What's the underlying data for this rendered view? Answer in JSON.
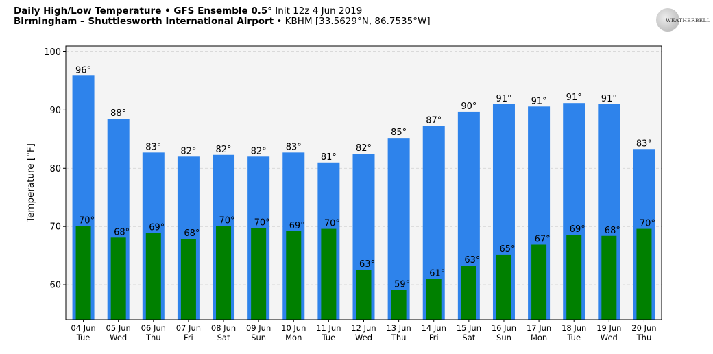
{
  "header": {
    "line1_bold": "Daily High/Low Temperature • GFS Ensemble 0.5",
    "line1_deg": "°",
    "line1_rest": " Init 12z 4 Jun 2019",
    "line2_bold": "Birmingham – Shuttlesworth International Airport",
    "line2_rest": " • KBHM [33.5629°N, 86.7535°W]"
  },
  "logo": {
    "icon": "weatherbell-logo",
    "text": "WEATHERBELL"
  },
  "colors": {
    "high": "#2e83eb",
    "low": "#008000",
    "plot_bg": "#f4f4f4",
    "grid": "#cfcfcf"
  },
  "chart_data": {
    "type": "bar",
    "title": "Daily High/Low Temperature • GFS Ensemble 0.5° Init 12z 4 Jun 2019",
    "subtitle": "Birmingham – Shuttlesworth International Airport • KBHM [33.5629°N, 86.7535°W]",
    "ylabel": "Temperature [°F]",
    "xlabel": "",
    "ylim": [
      54,
      101
    ],
    "yticks": [
      60,
      70,
      80,
      90,
      100
    ],
    "grid": true,
    "categories": [
      [
        "04 Jun",
        "Tue"
      ],
      [
        "05 Jun",
        "Wed"
      ],
      [
        "06 Jun",
        "Thu"
      ],
      [
        "07 Jun",
        "Fri"
      ],
      [
        "08 Jun",
        "Sat"
      ],
      [
        "09 Jun",
        "Sun"
      ],
      [
        "10 Jun",
        "Mon"
      ],
      [
        "11 Jun",
        "Tue"
      ],
      [
        "12 Jun",
        "Wed"
      ],
      [
        "13 Jun",
        "Thu"
      ],
      [
        "14 Jun",
        "Fri"
      ],
      [
        "15 Jun",
        "Sat"
      ],
      [
        "16 Jun",
        "Sun"
      ],
      [
        "17 Jun",
        "Mon"
      ],
      [
        "18 Jun",
        "Tue"
      ],
      [
        "19 Jun",
        "Wed"
      ],
      [
        "20 Jun",
        "Thu"
      ]
    ],
    "series": [
      {
        "values": [
          95.9,
          88.5,
          82.7,
          82.0,
          82.3,
          82.0,
          82.7,
          81.0,
          82.5,
          85.2,
          87.3,
          89.7,
          91.0,
          90.6,
          91.2,
          91.0,
          83.3
        ],
        "labels": [
          "96°",
          "88°",
          "83°",
          "82°",
          "82°",
          "82°",
          "83°",
          "81°",
          "82°",
          "85°",
          "87°",
          "90°",
          "91°",
          "91°",
          "91°",
          "91°",
          "83°"
        ]
      },
      {
        "values": [
          70.1,
          68.1,
          68.9,
          67.9,
          70.1,
          69.7,
          69.2,
          69.6,
          62.6,
          59.1,
          61.0,
          63.3,
          65.2,
          66.9,
          68.6,
          68.4,
          69.6
        ],
        "labels": [
          "70°",
          "68°",
          "69°",
          "68°",
          "70°",
          "70°",
          "69°",
          "70°",
          "63°",
          "59°",
          "61°",
          "63°",
          "65°",
          "67°",
          "69°",
          "68°",
          "70°"
        ]
      }
    ]
  }
}
